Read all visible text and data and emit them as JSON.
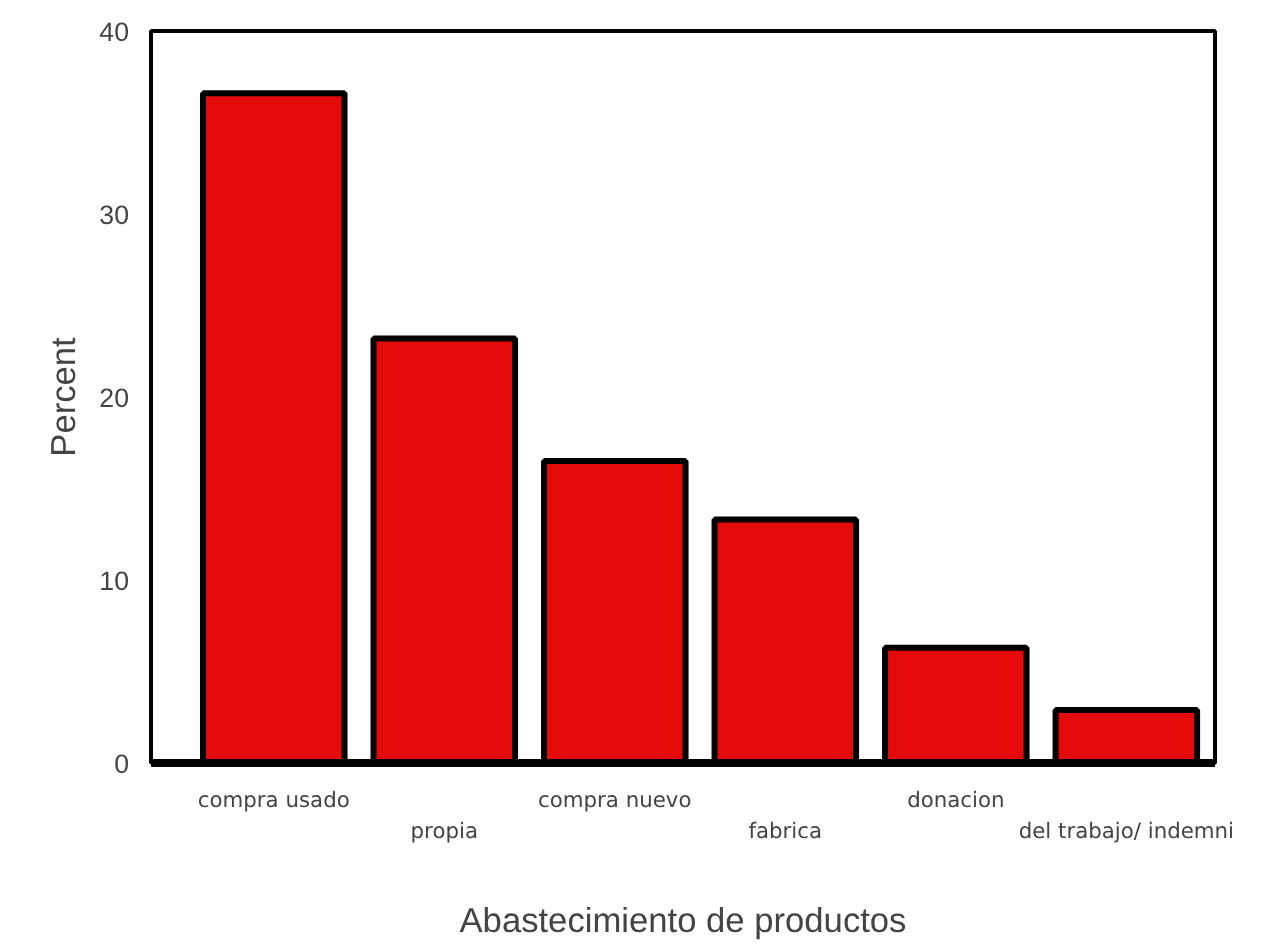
{
  "chart_data": {
    "type": "bar",
    "xlabel": "Abastecimiento de productos",
    "ylabel": "Percent",
    "categories": [
      "compra usado",
      "propia",
      "compra nuevo",
      "fabrica",
      "donacion",
      "del trabajo/ indemni"
    ],
    "values": [
      36.6,
      23.2,
      16.5,
      13.3,
      6.3,
      2.9
    ],
    "color": "#e50b0b",
    "ylim": [
      0,
      40
    ],
    "yticks": [
      0,
      10,
      20,
      30,
      40
    ],
    "grid": false
  }
}
